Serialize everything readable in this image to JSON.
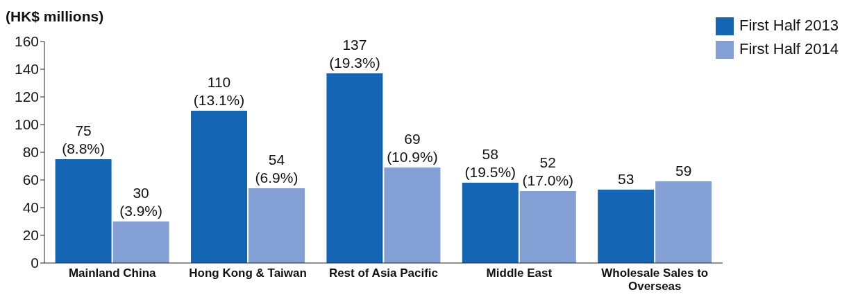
{
  "chart_data": {
    "type": "bar",
    "ylabel": "(HK$ millions)",
    "categories": [
      "Mainland China",
      "Hong Kong & Taiwan",
      "Rest of Asia Pacific",
      "Middle East",
      "Wholesale Sales to Overseas"
    ],
    "series": [
      {
        "name": "First Half 2013",
        "color": "#1565b5",
        "values": [
          75,
          110,
          137,
          58,
          53
        ],
        "value_labels": [
          "75\n(8.8%)",
          "110\n(13.1%)",
          "137\n(19.3%)",
          "58\n(19.5%)",
          "53"
        ]
      },
      {
        "name": "First Half 2014",
        "color": "#849fd3",
        "values": [
          30,
          54,
          69,
          52,
          59
        ],
        "value_labels": [
          "30\n(3.9%)",
          "54\n(6.9%)",
          "69\n(10.9%)",
          "52\n(17.0%)",
          "59"
        ]
      }
    ],
    "ylim": [
      0,
      160
    ],
    "yticks": [
      0,
      20,
      40,
      60,
      80,
      100,
      120,
      140,
      160
    ],
    "grid": false,
    "legend": "top right"
  }
}
